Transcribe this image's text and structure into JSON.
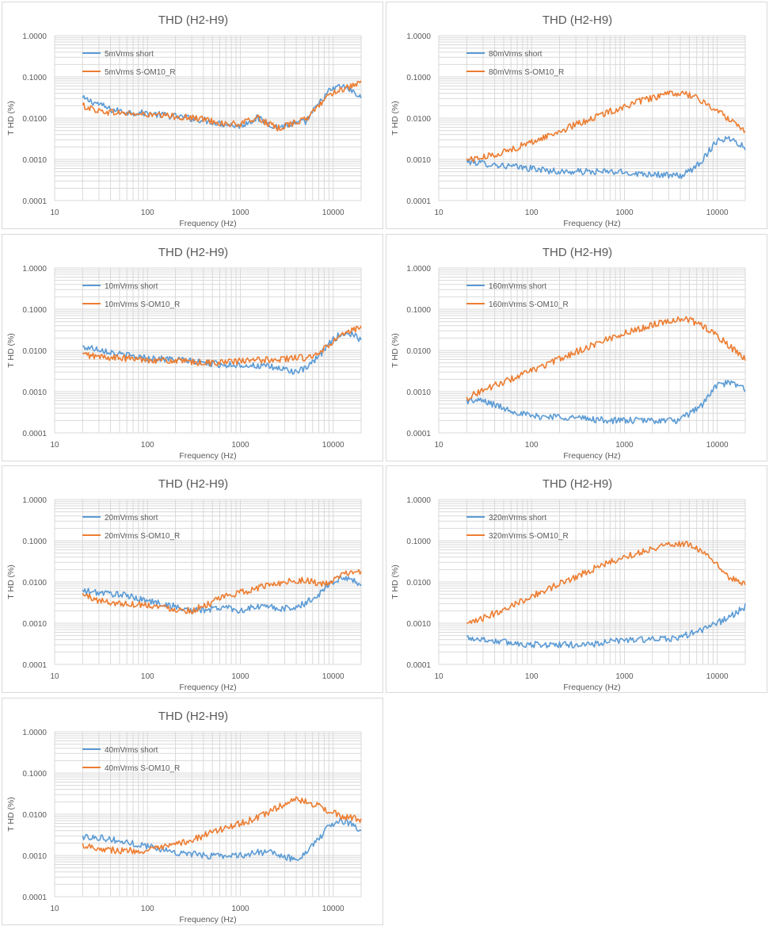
{
  "colors": {
    "short": "#5b9bd5",
    "om10": "#ed7d31",
    "grid": "#d9d9d9",
    "text": "#595959"
  },
  "chart_data": [
    {
      "type": "line",
      "title": "THD (H2-H9)",
      "xlabel": "Frequency (Hz)",
      "ylabel": "T HD (%)",
      "xscale": "log",
      "yscale": "log",
      "xlim": [
        10,
        20000
      ],
      "ylim": [
        0.0001,
        1
      ],
      "xticks": [
        "10",
        "100",
        "1000",
        "10000"
      ],
      "yticks": [
        "1.0000",
        "0.1000",
        "0.0100",
        "0.0010",
        "0.0001"
      ],
      "grid": true,
      "legend": "upper-left",
      "series": [
        {
          "name": "5mVrms short",
          "color": "#5b9bd5",
          "x": [
            20,
            30,
            40,
            60,
            100,
            200,
            400,
            700,
            1000,
            1500,
            2500,
            3500,
            5000,
            7000,
            9000,
            12000,
            15000,
            20000
          ],
          "y": [
            0.03,
            0.022,
            0.016,
            0.014,
            0.013,
            0.011,
            0.009,
            0.007,
            0.0065,
            0.01,
            0.006,
            0.007,
            0.008,
            0.022,
            0.045,
            0.06,
            0.05,
            0.03
          ]
        },
        {
          "name": "5mVrms S-OM10_R",
          "color": "#ed7d31",
          "x": [
            20,
            30,
            40,
            60,
            100,
            200,
            400,
            700,
            1000,
            1500,
            2500,
            3500,
            5000,
            7000,
            9000,
            12000,
            15000,
            20000
          ],
          "y": [
            0.02,
            0.015,
            0.014,
            0.013,
            0.012,
            0.011,
            0.0095,
            0.0072,
            0.007,
            0.0105,
            0.0055,
            0.0075,
            0.009,
            0.02,
            0.038,
            0.05,
            0.055,
            0.07
          ]
        }
      ]
    },
    {
      "type": "line",
      "title": "THD (H2-H9)",
      "xlabel": "Frequency (Hz)",
      "ylabel": "T HD (%)",
      "xscale": "log",
      "yscale": "log",
      "xlim": [
        10,
        20000
      ],
      "ylim": [
        0.0001,
        1
      ],
      "xticks": [
        "10",
        "100",
        "1000",
        "10000"
      ],
      "yticks": [
        "1.0000",
        "0.1000",
        "0.0100",
        "0.0010",
        "0.0001"
      ],
      "grid": true,
      "legend": "upper-left",
      "series": [
        {
          "name": "80mVrms short",
          "color": "#5b9bd5",
          "x": [
            20,
            30,
            50,
            100,
            200,
            400,
            700,
            1000,
            1500,
            2000,
            3000,
            4000,
            5000,
            7000,
            10000,
            14000,
            20000
          ],
          "y": [
            0.0009,
            0.0008,
            0.0007,
            0.0006,
            0.0005,
            0.0005,
            0.0005,
            0.00048,
            0.00045,
            0.00045,
            0.0004,
            0.0004,
            0.0005,
            0.001,
            0.003,
            0.0032,
            0.002
          ]
        },
        {
          "name": "80mVrms S-OM10_R",
          "color": "#ed7d31",
          "x": [
            20,
            30,
            50,
            100,
            200,
            400,
            700,
            1000,
            1500,
            2000,
            3000,
            4000,
            5000,
            7000,
            10000,
            14000,
            20000
          ],
          "y": [
            0.001,
            0.0011,
            0.0015,
            0.0026,
            0.0048,
            0.009,
            0.0145,
            0.019,
            0.026,
            0.031,
            0.038,
            0.04,
            0.037,
            0.025,
            0.015,
            0.009,
            0.005
          ]
        }
      ]
    },
    {
      "type": "line",
      "title": "THD (H2-H9)",
      "xlabel": "Frequency (Hz)",
      "ylabel": "T HD (%)",
      "xscale": "log",
      "yscale": "log",
      "xlim": [
        10,
        20000
      ],
      "ylim": [
        0.0001,
        1
      ],
      "xticks": [
        "10",
        "100",
        "1000",
        "10000"
      ],
      "yticks": [
        "1.0000",
        "0.1000",
        "0.0100",
        "0.0010",
        "0.0001"
      ],
      "grid": true,
      "legend": "upper-left",
      "series": [
        {
          "name": "10mVrms short",
          "color": "#5b9bd5",
          "x": [
            20,
            30,
            50,
            100,
            200,
            400,
            700,
            1000,
            1500,
            2000,
            3000,
            4000,
            5000,
            7000,
            9000,
            12000,
            16000,
            20000
          ],
          "y": [
            0.012,
            0.011,
            0.008,
            0.0065,
            0.006,
            0.005,
            0.0045,
            0.0045,
            0.0042,
            0.004,
            0.0035,
            0.003,
            0.0035,
            0.007,
            0.015,
            0.025,
            0.025,
            0.018
          ]
        },
        {
          "name": "10mVrms S-OM10_R",
          "color": "#ed7d31",
          "x": [
            20,
            30,
            50,
            100,
            200,
            400,
            700,
            1000,
            1500,
            2000,
            3000,
            4000,
            5000,
            7000,
            9000,
            12000,
            16000,
            20000
          ],
          "y": [
            0.008,
            0.007,
            0.0065,
            0.006,
            0.0055,
            0.005,
            0.0052,
            0.0055,
            0.0058,
            0.006,
            0.0062,
            0.0068,
            0.0065,
            0.008,
            0.014,
            0.022,
            0.03,
            0.035
          ]
        }
      ]
    },
    {
      "type": "line",
      "title": "THD (H2-H9)",
      "xlabel": "Frequency (Hz)",
      "ylabel": "T HD (%)",
      "xscale": "log",
      "yscale": "log",
      "xlim": [
        10,
        20000
      ],
      "ylim": [
        0.0001,
        1
      ],
      "xticks": [
        "10",
        "100",
        "1000",
        "10000"
      ],
      "yticks": [
        "1.0000",
        "0.1000",
        "0.0100",
        "0.0010",
        "0.0001"
      ],
      "grid": true,
      "legend": "upper-left",
      "series": [
        {
          "name": "160mVrms short",
          "color": "#5b9bd5",
          "x": [
            20,
            30,
            50,
            100,
            200,
            400,
            700,
            1000,
            2000,
            3000,
            4000,
            5000,
            7000,
            10000,
            14000,
            20000
          ],
          "y": [
            0.0006,
            0.0006,
            0.0004,
            0.00025,
            0.00025,
            0.00022,
            0.0002,
            0.0002,
            0.0002,
            0.0002,
            0.0002,
            0.0003,
            0.0005,
            0.0015,
            0.0016,
            0.0012
          ]
        },
        {
          "name": "160mVrms S-OM10_R",
          "color": "#ed7d31",
          "x": [
            20,
            30,
            50,
            100,
            200,
            400,
            700,
            1000,
            2000,
            3000,
            4000,
            5000,
            7000,
            10000,
            14000,
            20000
          ],
          "y": [
            0.0007,
            0.0011,
            0.0017,
            0.0032,
            0.0062,
            0.012,
            0.02,
            0.026,
            0.042,
            0.053,
            0.058,
            0.055,
            0.04,
            0.022,
            0.012,
            0.006
          ]
        }
      ]
    },
    {
      "type": "line",
      "title": "THD (H2-H9)",
      "xlabel": "Frequency (Hz)",
      "ylabel": "T HD (%)",
      "xscale": "log",
      "yscale": "log",
      "xlim": [
        10,
        20000
      ],
      "ylim": [
        0.0001,
        1
      ],
      "xticks": [
        "10",
        "100",
        "1000",
        "10000"
      ],
      "yticks": [
        "1.0000",
        "0.1000",
        "0.0100",
        "0.0010",
        "0.0001"
      ],
      "grid": true,
      "legend": "upper-left",
      "series": [
        {
          "name": "20mVrms short",
          "color": "#5b9bd5",
          "x": [
            20,
            30,
            50,
            100,
            200,
            300,
            500,
            700,
            1000,
            1500,
            2000,
            3000,
            4000,
            5000,
            7000,
            9000,
            12000,
            16000,
            20000
          ],
          "y": [
            0.006,
            0.0055,
            0.005,
            0.0035,
            0.0025,
            0.002,
            0.0022,
            0.0025,
            0.002,
            0.0025,
            0.0025,
            0.0022,
            0.0025,
            0.003,
            0.005,
            0.009,
            0.012,
            0.012,
            0.008
          ]
        },
        {
          "name": "20mVrms S-OM10_R",
          "color": "#ed7d31",
          "x": [
            20,
            30,
            50,
            100,
            200,
            300,
            500,
            700,
            1000,
            1500,
            2000,
            3000,
            4000,
            5000,
            7000,
            9000,
            12000,
            16000,
            20000
          ],
          "y": [
            0.005,
            0.0035,
            0.003,
            0.0028,
            0.0022,
            0.002,
            0.0032,
            0.0045,
            0.0055,
            0.007,
            0.0085,
            0.01,
            0.011,
            0.011,
            0.009,
            0.009,
            0.014,
            0.018,
            0.016
          ]
        }
      ]
    },
    {
      "type": "line",
      "title": "THD (H2-H9)",
      "xlabel": "Frequency (Hz)",
      "ylabel": "T HD (%)",
      "xscale": "log",
      "yscale": "log",
      "xlim": [
        10,
        20000
      ],
      "ylim": [
        0.0001,
        1
      ],
      "xticks": [
        "10",
        "100",
        "1000",
        "10000"
      ],
      "yticks": [
        "1.0000",
        "0.1000",
        "0.0100",
        "0.0010",
        "0.0001"
      ],
      "grid": true,
      "legend": "upper-left",
      "series": [
        {
          "name": "320mVrms short",
          "color": "#5b9bd5",
          "x": [
            20,
            30,
            50,
            100,
            200,
            400,
            700,
            1000,
            2000,
            2500,
            3000,
            4000,
            5000,
            7000,
            10000,
            14000,
            20000
          ],
          "y": [
            0.00045,
            0.0004,
            0.00035,
            0.0003,
            0.0003,
            0.0003,
            0.00035,
            0.0004,
            0.0004,
            0.0004,
            0.00042,
            0.00045,
            0.00055,
            0.0007,
            0.001,
            0.0015,
            0.0025
          ]
        },
        {
          "name": "320mVrms S-OM10_R",
          "color": "#ed7d31",
          "x": [
            20,
            30,
            50,
            100,
            200,
            400,
            700,
            1000,
            2000,
            2500,
            3000,
            4000,
            5000,
            7000,
            10000,
            14000,
            20000
          ],
          "y": [
            0.0009,
            0.0013,
            0.0022,
            0.0045,
            0.009,
            0.018,
            0.03,
            0.04,
            0.065,
            0.075,
            0.082,
            0.085,
            0.08,
            0.055,
            0.025,
            0.012,
            0.009
          ]
        }
      ]
    },
    {
      "type": "line",
      "title": "THD (H2-H9)",
      "xlabel": "Frequency (Hz)",
      "ylabel": "T HD (%)",
      "xscale": "log",
      "yscale": "log",
      "xlim": [
        10,
        20000
      ],
      "ylim": [
        0.0001,
        1
      ],
      "xticks": [
        "10",
        "100",
        "1000",
        "10000"
      ],
      "yticks": [
        "1.0000",
        "0.1000",
        "0.0100",
        "0.0010",
        "0.0001"
      ],
      "grid": true,
      "legend": "upper-left",
      "series": [
        {
          "name": "40mVrms short",
          "color": "#5b9bd5",
          "x": [
            20,
            30,
            50,
            100,
            200,
            400,
            700,
            1000,
            1500,
            2000,
            3000,
            4000,
            5000,
            7000,
            9000,
            12000,
            16000,
            20000
          ],
          "y": [
            0.0028,
            0.0028,
            0.0022,
            0.0017,
            0.0012,
            0.001,
            0.001,
            0.001,
            0.0012,
            0.0012,
            0.0009,
            0.0008,
            0.0012,
            0.0025,
            0.005,
            0.007,
            0.006,
            0.004
          ]
        },
        {
          "name": "40mVrms S-OM10_R",
          "color": "#ed7d31",
          "x": [
            20,
            30,
            50,
            100,
            200,
            400,
            700,
            1000,
            1500,
            2000,
            3000,
            4000,
            5000,
            7000,
            9000,
            12000,
            16000,
            20000
          ],
          "y": [
            0.0018,
            0.0015,
            0.0013,
            0.0013,
            0.0018,
            0.003,
            0.0048,
            0.006,
            0.008,
            0.011,
            0.018,
            0.022,
            0.02,
            0.016,
            0.012,
            0.009,
            0.008,
            0.007
          ]
        }
      ]
    }
  ]
}
